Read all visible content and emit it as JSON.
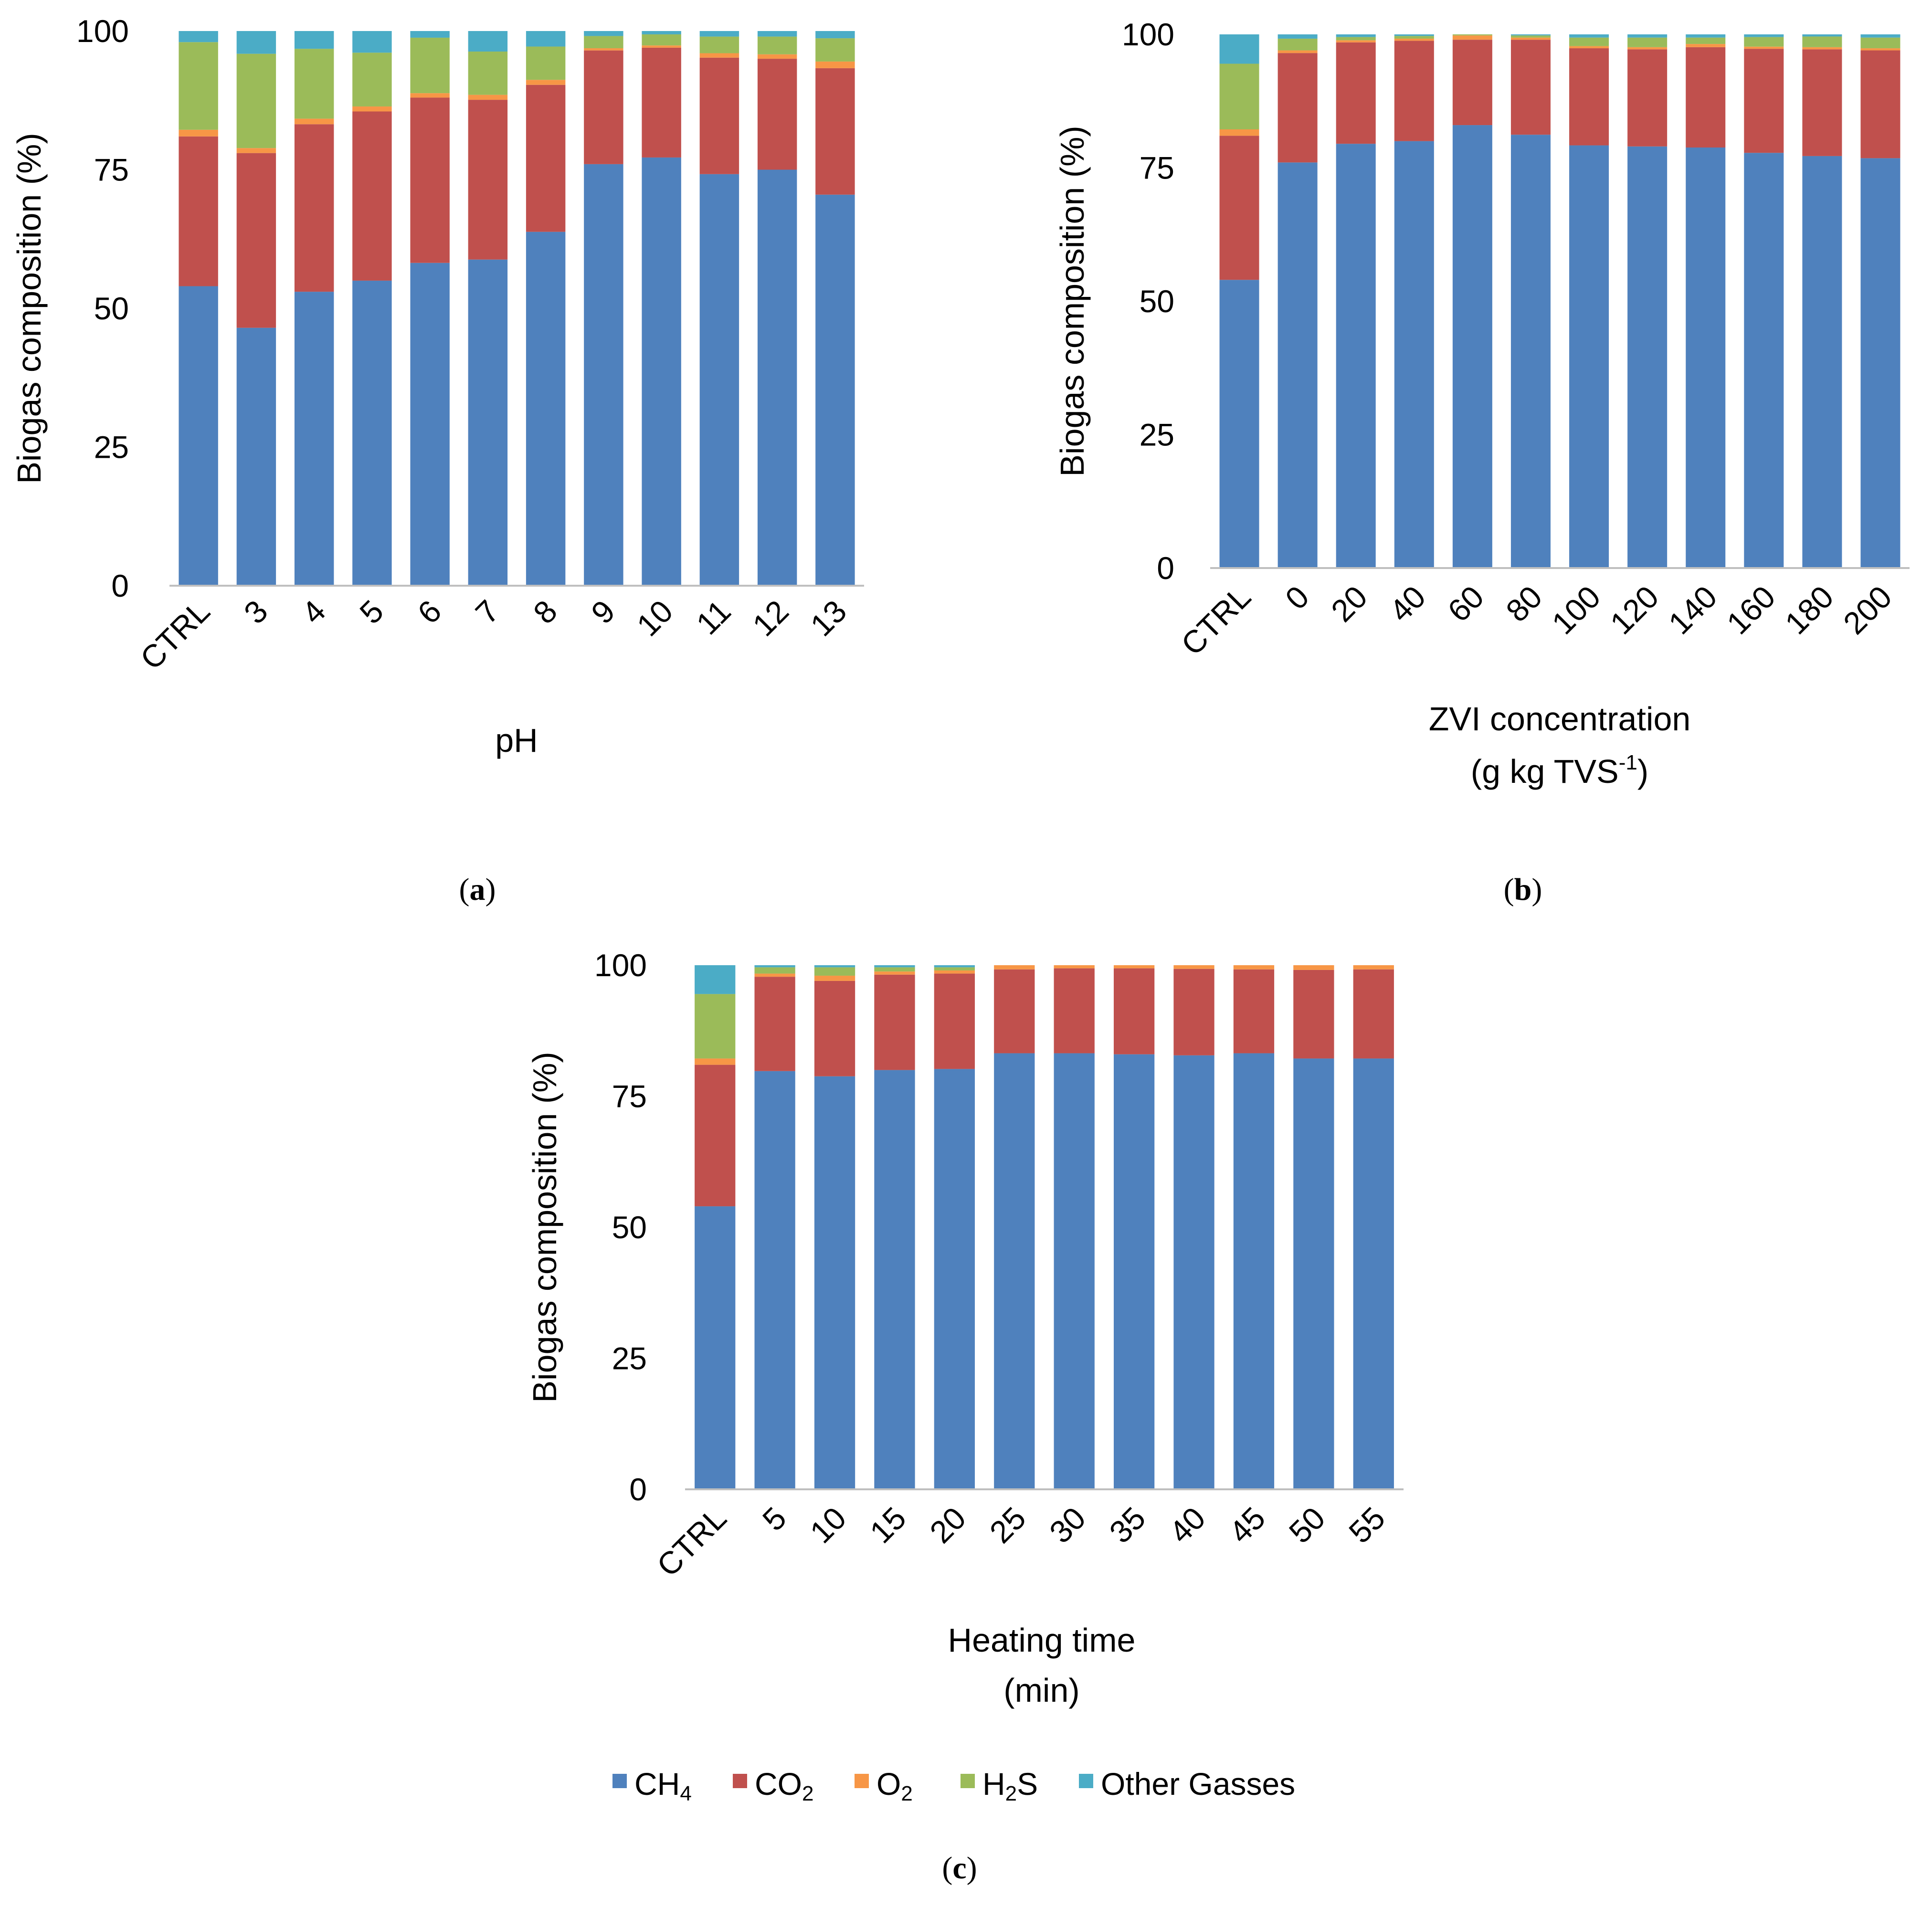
{
  "colors": {
    "CH4": "#4f81bd",
    "CO2": "#c0504d",
    "O2": "#f79646",
    "H2S": "#9bbb59",
    "Other": "#4bacc6",
    "axis": "#bfbfbf"
  },
  "legend": {
    "items": [
      {
        "key": "CH4",
        "label": "CH",
        "sub": "4"
      },
      {
        "key": "CO2",
        "label": "CO",
        "sub": "2"
      },
      {
        "key": "O2",
        "label": "O",
        "sub": "2"
      },
      {
        "key": "H2S",
        "label": "H",
        "sub": "2",
        "tail": "S"
      },
      {
        "key": "Other",
        "label": "Other Gasses"
      }
    ]
  },
  "chart_data": [
    {
      "type": "bar",
      "stacked": true,
      "panel_label": "(a)",
      "ylabel": "Biogas composition (%)",
      "xlabel": "pH",
      "ylim": [
        0,
        100
      ],
      "yticks": [
        "0",
        "25",
        "50",
        "75",
        "100"
      ],
      "categories": [
        "CTRL",
        "3",
        "4",
        "5",
        "6",
        "7",
        "8",
        "9",
        "10",
        "11",
        "12",
        "13"
      ],
      "series": [
        {
          "name": "CH4",
          "values": [
            54,
            46.5,
            53,
            55,
            58.2,
            58.8,
            63.8,
            76,
            77.2,
            74.2,
            75,
            70.5
          ]
        },
        {
          "name": "CO2",
          "values": [
            27,
            31.5,
            30.2,
            30.5,
            29.8,
            28.8,
            26.5,
            20.5,
            19.8,
            21,
            20,
            22.8
          ]
        },
        {
          "name": "O2",
          "values": [
            1.2,
            0.9,
            1,
            0.9,
            0.8,
            0.9,
            0.9,
            0.4,
            0.4,
            0.8,
            0.8,
            1.2
          ]
        },
        {
          "name": "H2S",
          "values": [
            15.8,
            17,
            12.6,
            9.7,
            10,
            7.8,
            6,
            2.2,
            2,
            3,
            3.2,
            4.2
          ]
        },
        {
          "name": "Other",
          "values": [
            2,
            4.1,
            3.2,
            3.9,
            1.2,
            3.7,
            2.8,
            0.9,
            0.6,
            1,
            1,
            1.3
          ]
        }
      ]
    },
    {
      "type": "bar",
      "stacked": true,
      "panel_label": "(b)",
      "ylabel": "Biogas composition (%)",
      "xlabel": "ZVI concentration",
      "xlabel2_pre": "(g kg TVS",
      "xlabel2_sup": "-1",
      "xlabel2_post": ")",
      "ylim": [
        0,
        100
      ],
      "yticks": [
        "0",
        "25",
        "50",
        "75",
        "100"
      ],
      "categories": [
        "CTRL",
        "0",
        "20",
        "40",
        "60",
        "80",
        "100",
        "120",
        "140",
        "160",
        "180",
        "200"
      ],
      "series": [
        {
          "name": "CH4",
          "values": [
            54,
            76,
            79.5,
            80,
            83,
            81.2,
            79.2,
            79,
            78.8,
            77.8,
            77.2,
            76.8
          ]
        },
        {
          "name": "CO2",
          "values": [
            27,
            20.5,
            19,
            18.8,
            16,
            17.8,
            18.2,
            18.2,
            18.8,
            19.5,
            20,
            20.2
          ]
        },
        {
          "name": "O2",
          "values": [
            1.2,
            0.5,
            0.4,
            0.4,
            0.8,
            0.4,
            0.4,
            0.4,
            0.6,
            0.4,
            0.4,
            0.4
          ]
        },
        {
          "name": "H2S",
          "values": [
            12.3,
            2.2,
            0.6,
            0.5,
            0.2,
            0.4,
            1.6,
            1.8,
            1.2,
            1.8,
            2,
            2
          ]
        },
        {
          "name": "Other",
          "values": [
            5.5,
            0.8,
            0.5,
            0.3,
            0,
            0.2,
            0.6,
            0.6,
            0.6,
            0.5,
            0.4,
            0.6
          ]
        }
      ]
    },
    {
      "type": "bar",
      "stacked": true,
      "panel_label": "(c)",
      "ylabel": "Biogas composition (%)",
      "xlabel": "Heating time",
      "xlabel2_pre": "(min)",
      "ylim": [
        0,
        100
      ],
      "yticks": [
        "0",
        "25",
        "50",
        "75",
        "100"
      ],
      "categories": [
        "CTRL",
        "5",
        "10",
        "15",
        "20",
        "25",
        "30",
        "35",
        "40",
        "45",
        "50",
        "55"
      ],
      "series": [
        {
          "name": "CH4",
          "values": [
            54,
            79.8,
            78.8,
            80,
            80.2,
            83.2,
            83.2,
            83,
            82.8,
            83.2,
            82.2,
            82.2
          ]
        },
        {
          "name": "CO2",
          "values": [
            27,
            18,
            18.2,
            18.2,
            18.2,
            16,
            16.2,
            16.4,
            16.5,
            16,
            16.9,
            17
          ]
        },
        {
          "name": "O2",
          "values": [
            1.2,
            0.6,
            1,
            0.6,
            0.6,
            0.8,
            0.6,
            0.6,
            0.7,
            0.8,
            0.9,
            0.8
          ]
        },
        {
          "name": "H2S",
          "values": [
            12.3,
            1.2,
            1.6,
            0.8,
            0.6,
            0,
            0,
            0,
            0,
            0,
            0,
            0
          ]
        },
        {
          "name": "Other",
          "values": [
            5.5,
            0.4,
            0.4,
            0.4,
            0.4,
            0,
            0,
            0,
            0,
            0,
            0,
            0
          ]
        }
      ]
    }
  ]
}
